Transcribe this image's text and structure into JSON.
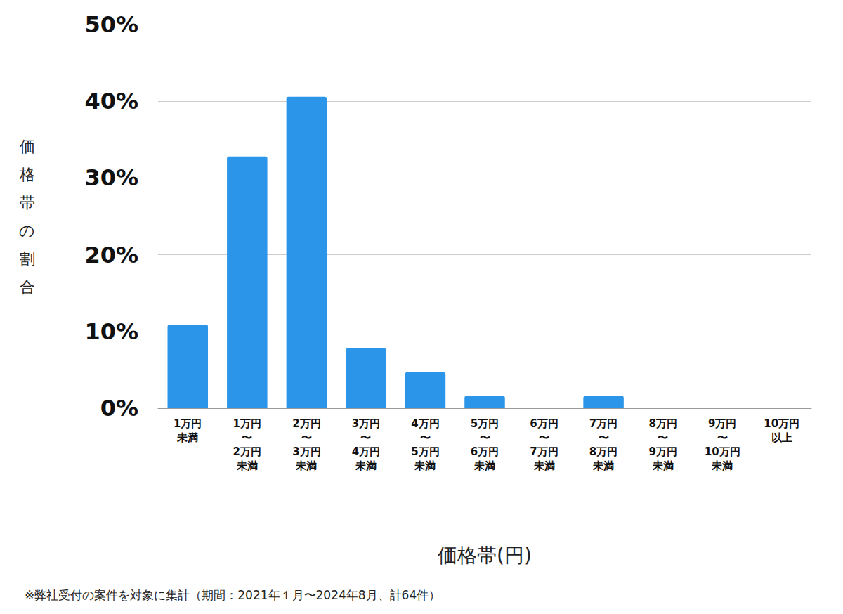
{
  "chart_data": {
    "type": "bar",
    "x_label": "価格帯(円)",
    "y_label": "価格帯の割合",
    "annotations": [
      "※弊社受付の案件を対象に集計（期間：2021年１月〜2024年8月、計64件）"
    ],
    "categories": [
      "1万円\n未満",
      "1万円\n〜\n2万円\n未満",
      "2万円\n〜\n3万円\n未満",
      "3万円\n〜\n4万円\n未満",
      "4万円\n〜\n5万円\n未満",
      "5万円\n〜\n6万円\n未満",
      "6万円\n〜\n7万円\n未満",
      "7万円\n〜\n8万円\n未満",
      "8万円\n〜\n9万円\n未満",
      "9万円\n〜\n10万円\n未満",
      "10万円\n以上"
    ],
    "values": [
      10.9,
      32.8,
      40.6,
      7.8,
      4.7,
      1.6,
      0,
      1.6,
      0,
      0,
      0
    ],
    "color": "#2b95e9",
    "ylim": [
      0,
      50
    ],
    "yticks": [
      {
        "value": 0,
        "label": "0%"
      },
      {
        "value": 10,
        "label": "10%"
      },
      {
        "value": 20,
        "label": "20%"
      },
      {
        "value": 30,
        "label": "30%"
      },
      {
        "value": 40,
        "label": "40%"
      },
      {
        "value": 50,
        "label": "50%"
      }
    ],
    "grid": true
  }
}
